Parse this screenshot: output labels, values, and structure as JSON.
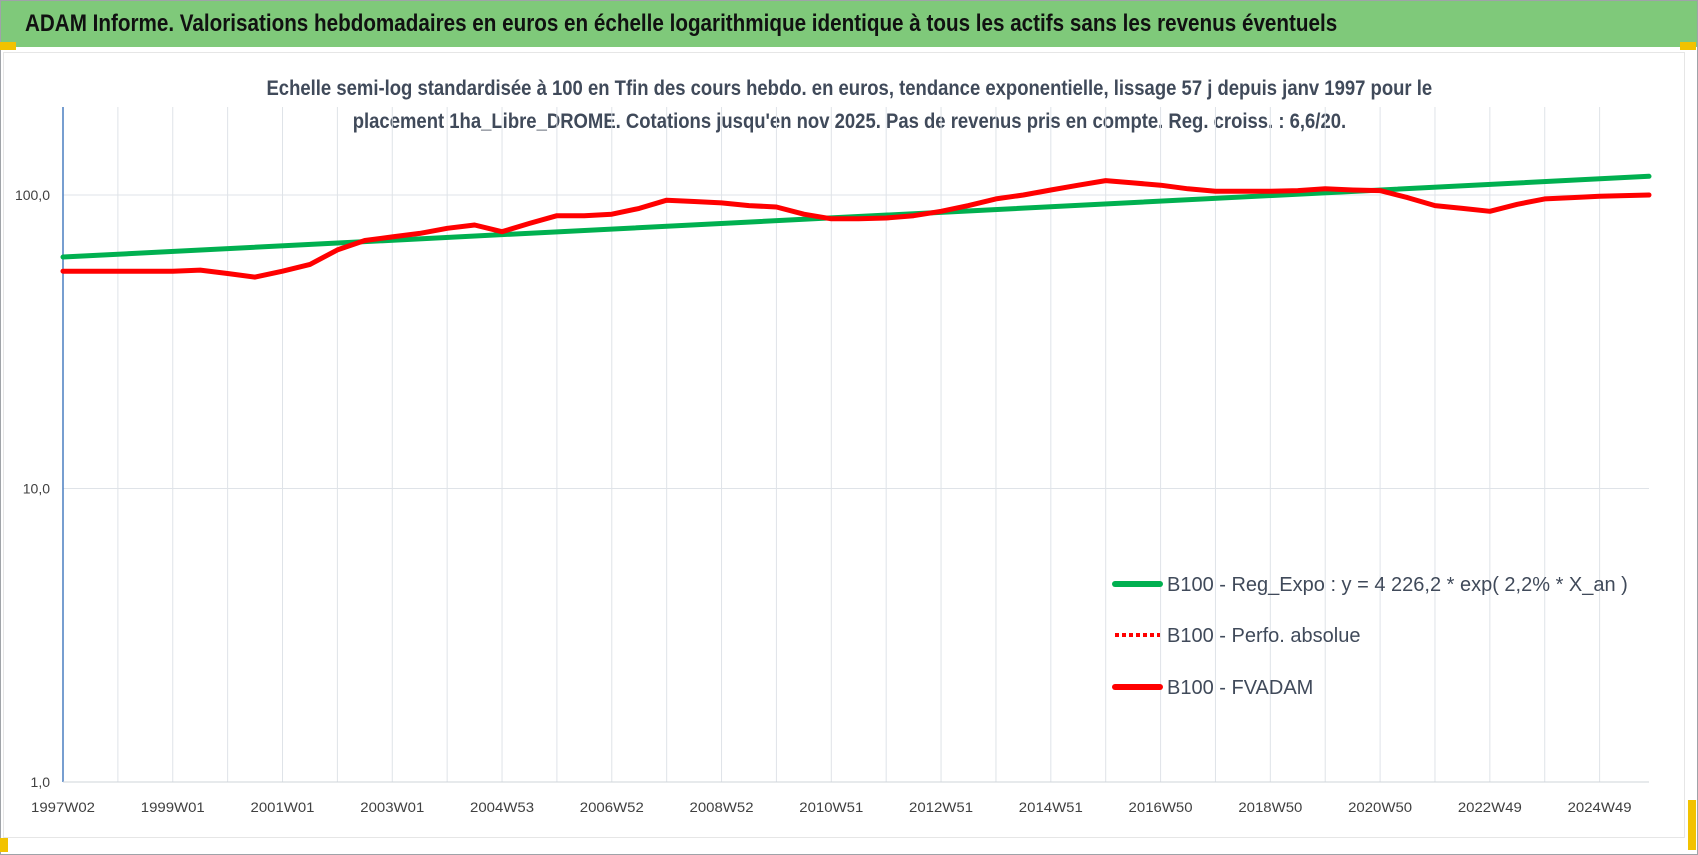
{
  "header": {
    "title": "ADAM Informe. Valorisations hebdomadaires en euros en échelle logarithmique identique à tous les actifs sans les revenus éventuels"
  },
  "chart_data": {
    "type": "line",
    "title_line1": "Echelle semi-log standardisée à 100 en Tfin des cours hebdo. en euros, tendance exponentielle, lissage 57 j depuis janv 1997 pour le",
    "title_line2": "placement 1ha_Libre_DROME. Cotations jusqu'en nov 2025. Pas de revenus pris en compte. Reg. croiss. : 6,6/20.",
    "y_scale": "log",
    "ylim": [
      1,
      200
    ],
    "y_ticks": [
      {
        "value": 1,
        "label": "1,0"
      },
      {
        "value": 10,
        "label": "10,0"
      },
      {
        "value": 100,
        "label": "100,0"
      }
    ],
    "xlim": [
      1997.0,
      2025.9
    ],
    "x_ticks": [
      {
        "x": 1997.0,
        "label": "1997W02"
      },
      {
        "x": 1999.0,
        "label": "1999W01"
      },
      {
        "x": 2001.0,
        "label": "2001W01"
      },
      {
        "x": 2003.0,
        "label": "2003W01"
      },
      {
        "x": 2005.0,
        "label": "2004W53"
      },
      {
        "x": 2007.0,
        "label": "2006W52"
      },
      {
        "x": 2009.0,
        "label": "2008W52"
      },
      {
        "x": 2011.0,
        "label": "2010W51"
      },
      {
        "x": 2013.0,
        "label": "2012W51"
      },
      {
        "x": 2015.0,
        "label": "2014W51"
      },
      {
        "x": 2017.0,
        "label": "2016W50"
      },
      {
        "x": 2019.0,
        "label": "2018W50"
      },
      {
        "x": 2021.0,
        "label": "2020W50"
      },
      {
        "x": 2023.0,
        "label": "2022W49"
      },
      {
        "x": 2025.0,
        "label": "2024W49"
      }
    ],
    "grid": {
      "vertical": true,
      "horizontal": true
    },
    "legend_position": "bottom-right",
    "series": [
      {
        "name": "B100 - Reg_Expo : y = 4 226,2 * exp( 2,2% *  X_an )",
        "color": "#00b050",
        "style": "solid",
        "x": [
          1997.0,
          2025.9
        ],
        "y": [
          61.5,
          115.8
        ]
      },
      {
        "name": "B100 - Perfo. absolue",
        "color": "#ff0000",
        "style": "dotted",
        "x": [],
        "y": []
      },
      {
        "name": "B100 - FVADAM",
        "color": "#ff0000",
        "style": "solid",
        "x": [
          1997.0,
          1998.0,
          1999.0,
          1999.5,
          2000.0,
          2000.5,
          2001.0,
          2001.5,
          2002.0,
          2002.5,
          2003.0,
          2003.5,
          2004.0,
          2004.5,
          2005.0,
          2005.5,
          2006.0,
          2006.5,
          2007.0,
          2007.5,
          2008.0,
          2008.5,
          2009.0,
          2009.5,
          2010.0,
          2010.5,
          2011.0,
          2011.5,
          2012.0,
          2012.5,
          2013.0,
          2013.5,
          2014.0,
          2014.5,
          2015.0,
          2015.5,
          2016.0,
          2016.5,
          2017.0,
          2017.5,
          2018.0,
          2018.5,
          2019.0,
          2019.5,
          2020.0,
          2020.5,
          2021.0,
          2021.5,
          2022.0,
          2022.5,
          2023.0,
          2023.5,
          2024.0,
          2024.5,
          2025.0,
          2025.9
        ],
        "y": [
          55,
          55,
          55,
          55.5,
          54,
          52.5,
          55,
          58,
          65,
          70,
          72,
          74,
          77,
          79,
          75,
          80,
          85,
          85,
          86,
          90,
          96,
          95,
          94,
          92,
          91,
          86,
          83,
          83,
          83.5,
          85,
          88,
          92,
          97,
          100,
          104,
          108,
          112,
          110,
          108,
          105,
          103,
          103,
          103,
          103.5,
          105,
          104,
          103.5,
          98,
          92,
          90,
          88,
          93,
          97,
          98,
          99,
          100
        ]
      }
    ]
  }
}
